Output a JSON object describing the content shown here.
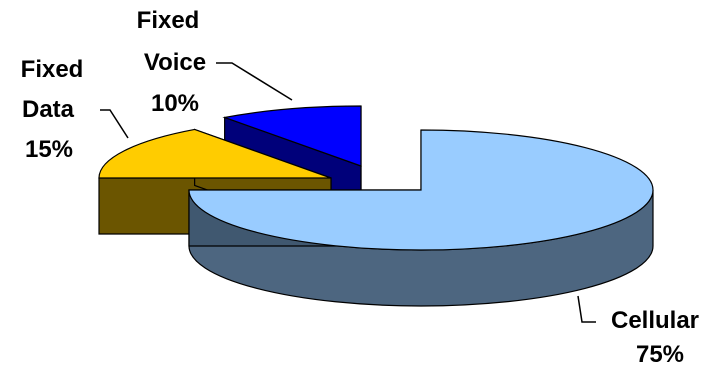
{
  "chart_data": {
    "type": "pie",
    "style": "3d-exploded",
    "title": "",
    "slices": [
      {
        "name": "Cellular",
        "name_lines": [
          "Cellular"
        ],
        "value": 75,
        "label": "75%"
      },
      {
        "name": "Fixed Data",
        "name_lines": [
          "Fixed",
          "Data"
        ],
        "value": 15,
        "label": "15%"
      },
      {
        "name": "Fixed Voice",
        "name_lines": [
          "Fixed",
          "Voice"
        ],
        "value": 10,
        "label": "10%"
      }
    ],
    "colors": {
      "Cellular": {
        "top": "#99ccff",
        "side": "#4d6680",
        "side_dark": "#405870"
      },
      "Fixed Data": {
        "top": "#ffcc00",
        "side": "#806600",
        "side_dark": "#6b5500"
      },
      "Fixed Voice": {
        "top": "#0000ff",
        "side": "#1a1a99",
        "side_dark": "#00007a"
      }
    },
    "legend": "none"
  }
}
